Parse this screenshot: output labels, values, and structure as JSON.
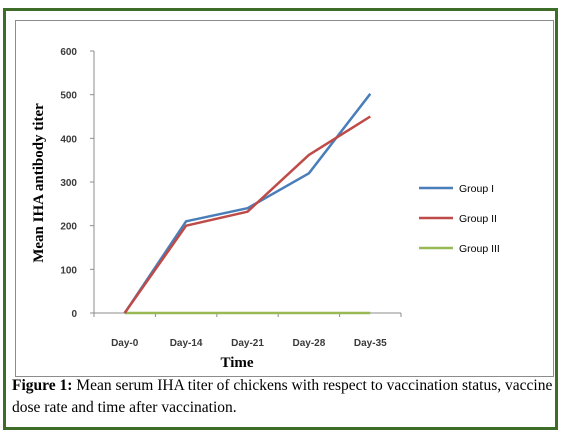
{
  "chart_data": {
    "type": "line",
    "categories": [
      "Day-0",
      "Day-14",
      "Day-21",
      "Day-28",
      "Day-35"
    ],
    "series": [
      {
        "name": "Group I",
        "values": [
          0,
          210,
          240,
          320,
          502
        ],
        "color": "#4a7ebb"
      },
      {
        "name": "Group II",
        "values": [
          0,
          200,
          232,
          362,
          450
        ],
        "color": "#be4b48"
      },
      {
        "name": "Group III",
        "values": [
          0,
          0,
          0,
          0,
          0
        ],
        "color": "#98b954"
      }
    ],
    "ylim": [
      0,
      600
    ],
    "yticks": [
      0,
      100,
      200,
      300,
      400,
      500,
      600
    ],
    "xlabel": "Time",
    "ylabel": "Mean IHA antibody titer",
    "grid": false,
    "legend": "right"
  },
  "caption": {
    "label": "Figure 1:",
    "text": " Mean serum IHA titer of chickens with respect to vaccination status, vaccine dose rate and time after vaccination."
  }
}
